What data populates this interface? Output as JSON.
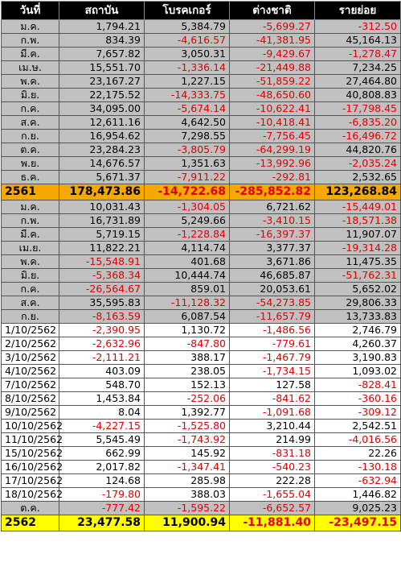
{
  "header": [
    "วันที่",
    "สถาบัน",
    "โบรคเกอร์",
    "ต่างชาติ",
    "รายย่อย"
  ],
  "rows": [
    {
      "style": "gray",
      "label": "ม.ค.",
      "v": [
        "1,794.21",
        "5,384.79",
        "-5,699.27",
        "-312.50"
      ]
    },
    {
      "style": "gray",
      "label": "ก.พ.",
      "v": [
        "834.39",
        "-4,616.57",
        "-41,381.95",
        "45,164.13"
      ]
    },
    {
      "style": "gray",
      "label": "มี.ค.",
      "v": [
        "7,657.82",
        "3,050.31",
        "-9,429.67",
        "-1,278.47"
      ]
    },
    {
      "style": "gray",
      "label": "เม.ษ.",
      "v": [
        "15,551.70",
        "-1,336.14",
        "-21,449.88",
        "7,234.25"
      ]
    },
    {
      "style": "gray",
      "label": "พ.ค.",
      "v": [
        "23,167.27",
        "1,227.15",
        "-51,859.22",
        "27,464.80"
      ]
    },
    {
      "style": "gray",
      "label": "มิ.ย.",
      "v": [
        "22,175.52",
        "-14,333.75",
        "-48,650.60",
        "40,808.83"
      ]
    },
    {
      "style": "gray",
      "label": "ก.ค.",
      "v": [
        "34,095.00",
        "-5,674.14",
        "-10,622.41",
        "-17,798.45"
      ]
    },
    {
      "style": "gray",
      "label": "ส.ค.",
      "v": [
        "12,611.16",
        "4,642.50",
        "-10,418.41",
        "-6,835.20"
      ]
    },
    {
      "style": "gray",
      "label": "ก.ย.",
      "v": [
        "16,954.62",
        "7,298.55",
        "-7,756.45",
        "-16,496.72"
      ]
    },
    {
      "style": "gray",
      "label": "ต.ค.",
      "v": [
        "23,284.23",
        "-3,805.79",
        "-64,299.19",
        "44,820.76"
      ]
    },
    {
      "style": "gray",
      "label": "พ.ย.",
      "v": [
        "14,676.57",
        "1,351.63",
        "-13,992.96",
        "-2,035.24"
      ]
    },
    {
      "style": "gray",
      "label": "ธ.ค.",
      "v": [
        "5,671.37",
        "-7,911.22",
        "-292.81",
        "2,532.65"
      ]
    },
    {
      "style": "total",
      "label": "2561",
      "v": [
        "178,473.86",
        "-14,722.68",
        "-285,852.82",
        "123,268.84"
      ]
    },
    {
      "style": "gray",
      "label": "ม.ค.",
      "v": [
        "10,031.43",
        "-1,304.05",
        "6,721.62",
        "-15,449.01"
      ]
    },
    {
      "style": "gray",
      "label": "ก.พ.",
      "v": [
        "16,731.89",
        "5,249.66",
        "-3,410.15",
        "-18,571.38"
      ]
    },
    {
      "style": "gray",
      "label": "มี.ค.",
      "v": [
        "5,719.15",
        "-1,228.84",
        "-16,397.37",
        "11,907.07"
      ]
    },
    {
      "style": "gray",
      "label": "เม.ย.",
      "v": [
        "11,822.21",
        "4,114.74",
        "3,377.37",
        "-19,314.28"
      ]
    },
    {
      "style": "gray",
      "label": "พ.ค.",
      "v": [
        "-15,548.91",
        "401.68",
        "3,671.86",
        "11,475.35"
      ]
    },
    {
      "style": "gray",
      "label": "มิ.ย.",
      "v": [
        "-5,368.34",
        "10,444.74",
        "46,685.87",
        "-51,762.31"
      ]
    },
    {
      "style": "gray",
      "label": "ก.ค.",
      "v": [
        "-26,564.67",
        "859.01",
        "20,053.61",
        "5,652.02"
      ]
    },
    {
      "style": "gray",
      "label": "ส.ค.",
      "v": [
        "35,595.83",
        "-11,128.32",
        "-54,273.85",
        "29,806.33"
      ]
    },
    {
      "style": "gray",
      "label": "ก.ย.",
      "v": [
        "-8,163.59",
        "6,087.54",
        "-11,657.79",
        "13,733.83"
      ]
    },
    {
      "style": "white",
      "label": "1/10/2562",
      "v": [
        "-2,390.95",
        "1,130.72",
        "-1,486.56",
        "2,746.79"
      ]
    },
    {
      "style": "white",
      "label": "2/10/2562",
      "v": [
        "-2,632.96",
        "-847.80",
        "-779.61",
        "4,260.37"
      ]
    },
    {
      "style": "white",
      "label": "3/10/2562",
      "v": [
        "-2,111.21",
        "388.17",
        "-1,467.79",
        "3,190.83"
      ]
    },
    {
      "style": "white",
      "label": "4/10/2562",
      "v": [
        "403.09",
        "238.05",
        "-1,734.15",
        "1,093.02"
      ]
    },
    {
      "style": "white",
      "label": "7/10/2562",
      "v": [
        "548.70",
        "152.13",
        "127.58",
        "-828.41"
      ]
    },
    {
      "style": "white",
      "label": "8/10/2562",
      "v": [
        "1,453.84",
        "-252.06",
        "-841.62",
        "-360.16"
      ]
    },
    {
      "style": "white",
      "label": "9/10/2562",
      "v": [
        "8.04",
        "1,392.77",
        "-1,091.68",
        "-309.12"
      ]
    },
    {
      "style": "white",
      "label": "10/10/2562",
      "v": [
        "-4,227.15",
        "-1,525.80",
        "3,210.44",
        "2,542.51"
      ]
    },
    {
      "style": "white",
      "label": "11/10/2562",
      "v": [
        "5,545.49",
        "-1,743.92",
        "214.99",
        "-4,016.56"
      ]
    },
    {
      "style": "white",
      "label": "15/10/2562",
      "v": [
        "662.99",
        "145.92",
        "-831.18",
        "22.26"
      ]
    },
    {
      "style": "white",
      "label": "16/10/2562",
      "v": [
        "2,017.82",
        "-1,347.41",
        "-540.23",
        "-130.18"
      ]
    },
    {
      "style": "white",
      "label": "17/10/2562",
      "v": [
        "124.68",
        "285.98",
        "222.28",
        "-632.94"
      ]
    },
    {
      "style": "white",
      "label": "18/10/2562",
      "v": [
        "-179.80",
        "388.03",
        "-1,655.04",
        "1,446.82"
      ]
    },
    {
      "style": "gray",
      "label": "ต.ค.",
      "v": [
        "-777.42",
        "-1,595.22",
        "-6,652.57",
        "9,025.23"
      ]
    },
    {
      "style": "foot",
      "label": "2562",
      "v": [
        "23,477.58",
        "11,900.94",
        "-11,881.40",
        "-23,497.15"
      ]
    }
  ],
  "colors": {
    "negative": "#e00000",
    "positive": "#000000",
    "header_bg": "#000000",
    "total_bg": "#f5a800",
    "footer_bg": "#ffff00",
    "month_bg": "#c0c0c0"
  }
}
